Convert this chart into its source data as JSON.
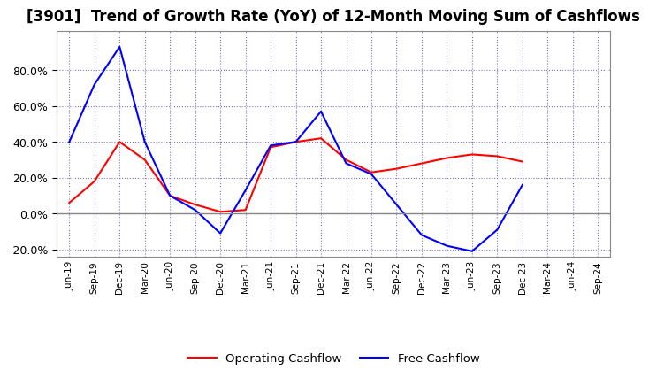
{
  "title": "[3901]  Trend of Growth Rate (YoY) of 12-Month Moving Sum of Cashflows",
  "x_labels": [
    "Jun-19",
    "Sep-19",
    "Dec-19",
    "Mar-20",
    "Jun-20",
    "Sep-20",
    "Dec-20",
    "Mar-21",
    "Jun-21",
    "Sep-21",
    "Dec-21",
    "Mar-22",
    "Jun-22",
    "Sep-22",
    "Dec-22",
    "Mar-23",
    "Jun-23",
    "Sep-23",
    "Dec-23",
    "Mar-24",
    "Jun-24",
    "Sep-24"
  ],
  "operating_cashflow": [
    0.06,
    0.18,
    0.4,
    0.3,
    0.1,
    0.05,
    0.01,
    0.02,
    0.37,
    0.4,
    0.42,
    0.3,
    0.23,
    0.25,
    0.28,
    0.31,
    0.33,
    0.32,
    0.29,
    null,
    null,
    null
  ],
  "free_cashflow": [
    0.4,
    0.72,
    0.93,
    0.4,
    0.1,
    0.02,
    -0.11,
    0.13,
    0.38,
    0.4,
    0.57,
    0.28,
    0.22,
    0.05,
    -0.12,
    -0.18,
    -0.21,
    -0.09,
    0.16,
    null,
    null,
    null
  ],
  "operating_color": "#ff0000",
  "free_color": "#0000ff",
  "ylim": [
    -0.24,
    1.02
  ],
  "yticks": [
    -0.2,
    0.0,
    0.2,
    0.4,
    0.6,
    0.8
  ],
  "background_color": "#ffffff",
  "grid_color": "#7777bb",
  "title_fontsize": 12,
  "legend_labels": [
    "Operating Cashflow",
    "Free Cashflow"
  ]
}
